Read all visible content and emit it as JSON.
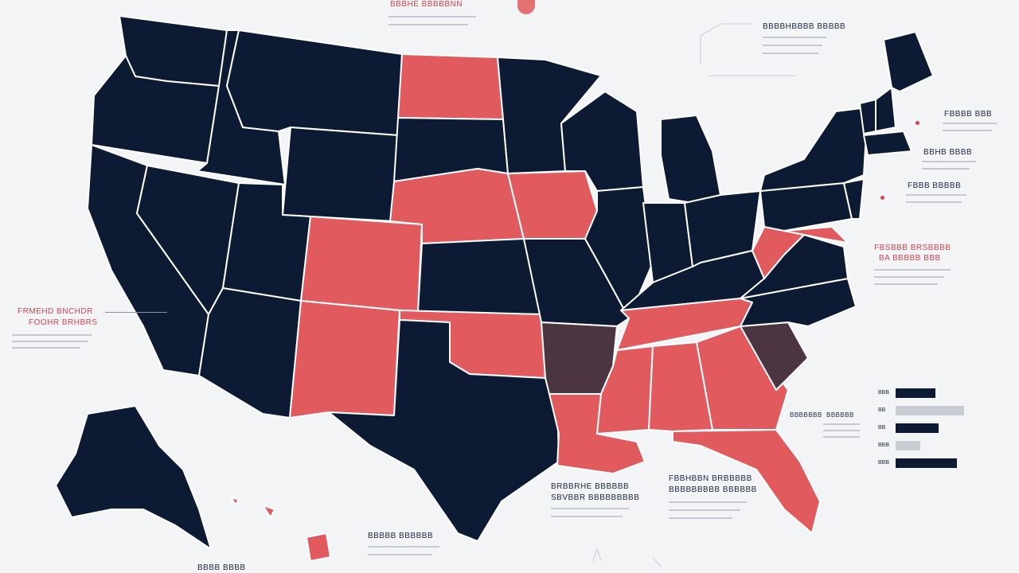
{
  "colors": {
    "background": "#f3f4f6",
    "navy": "#0d1a33",
    "red": "#e05a5e",
    "maroon": "#4a3540",
    "border": "#ffffff"
  },
  "states": [
    {
      "name": "WA",
      "group": "navy"
    },
    {
      "name": "OR",
      "group": "navy"
    },
    {
      "name": "CA",
      "group": "navy"
    },
    {
      "name": "ID",
      "group": "navy"
    },
    {
      "name": "NV",
      "group": "navy"
    },
    {
      "name": "MT",
      "group": "navy"
    },
    {
      "name": "WY",
      "group": "navy"
    },
    {
      "name": "UT",
      "group": "navy"
    },
    {
      "name": "AZ",
      "group": "navy"
    },
    {
      "name": "CO",
      "group": "red"
    },
    {
      "name": "NM",
      "group": "red"
    },
    {
      "name": "ND",
      "group": "red"
    },
    {
      "name": "SD",
      "group": "navy"
    },
    {
      "name": "NE",
      "group": "red"
    },
    {
      "name": "KS",
      "group": "navy"
    },
    {
      "name": "OK",
      "group": "red"
    },
    {
      "name": "TX",
      "group": "navy"
    },
    {
      "name": "MN",
      "group": "navy"
    },
    {
      "name": "IA",
      "group": "red"
    },
    {
      "name": "MO",
      "group": "navy"
    },
    {
      "name": "AR",
      "group": "maroon"
    },
    {
      "name": "LA",
      "group": "red"
    },
    {
      "name": "WI",
      "group": "navy"
    },
    {
      "name": "IL",
      "group": "navy"
    },
    {
      "name": "MI",
      "group": "navy"
    },
    {
      "name": "IN",
      "group": "navy"
    },
    {
      "name": "OH",
      "group": "navy"
    },
    {
      "name": "KY",
      "group": "navy"
    },
    {
      "name": "TN",
      "group": "red"
    },
    {
      "name": "MS",
      "group": "red"
    },
    {
      "name": "AL",
      "group": "red"
    },
    {
      "name": "GA",
      "group": "red"
    },
    {
      "name": "FL",
      "group": "red"
    },
    {
      "name": "SC",
      "group": "maroon"
    },
    {
      "name": "NC",
      "group": "navy"
    },
    {
      "name": "VA",
      "group": "navy"
    },
    {
      "name": "WV",
      "group": "red"
    },
    {
      "name": "MD",
      "group": "red"
    },
    {
      "name": "PA",
      "group": "navy"
    },
    {
      "name": "NY",
      "group": "navy"
    },
    {
      "name": "NJ",
      "group": "navy"
    },
    {
      "name": "VT",
      "group": "navy"
    },
    {
      "name": "NH",
      "group": "navy"
    },
    {
      "name": "ME",
      "group": "navy"
    },
    {
      "name": "MA",
      "group": "navy"
    },
    {
      "name": "AK",
      "group": "navy"
    },
    {
      "name": "HI",
      "group": "red"
    }
  ],
  "labels": {
    "west_title_1": "FRMEHD BNCHDR",
    "west_title_2": "FOOHR BRHBRS",
    "top_center": "BBBHE BBBBBNN",
    "top_right": "BBBBHBBBB BBBBB",
    "ne_1": "FBBBB BBB",
    "ne_2": "BBHB BBBB",
    "ne_3": "FBBB BBBBB",
    "east_title_1": "FBSBBB BRSBBBB",
    "east_title_2": "BA BBBBB BBB",
    "gulf_title_1": "FBBHBBN BRBBBBB",
    "gulf_title_2": "BBBBBBBBB BBBBBB",
    "south_title_1": "BRBBRHE BBBBBB",
    "south_title_2": "SBVBBR BBBBBBBBB",
    "bottom_center": "BBBBB BBBBBB",
    "bottom_left": "BBBB BBBB",
    "legend_title_1": "BBBBBBB",
    "legend_title_2": "BBBBBB"
  },
  "legend_bars": [
    {
      "label": "BBB",
      "fill": 0.55,
      "tone": "navy"
    },
    {
      "label": "BB",
      "fill": 0.95,
      "tone": "gray"
    },
    {
      "label": "BB",
      "fill": 0.6,
      "tone": "navy"
    },
    {
      "label": "BBB",
      "fill": 0.35,
      "tone": "gray"
    },
    {
      "label": "BBB",
      "fill": 0.85,
      "tone": "navy"
    }
  ]
}
